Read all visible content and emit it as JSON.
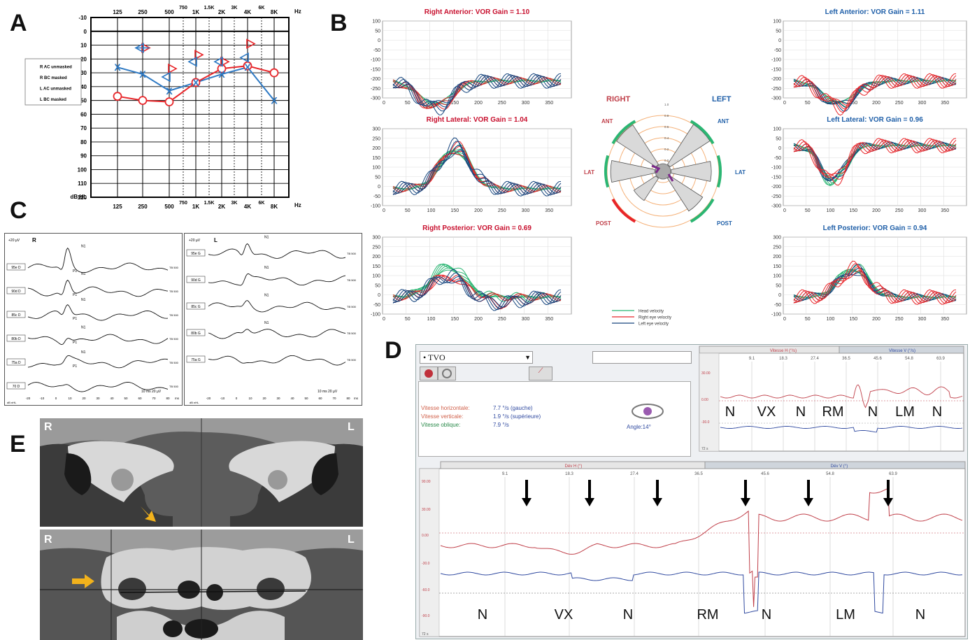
{
  "panels": {
    "a": "A",
    "b": "B",
    "c": "C",
    "d": "D",
    "e": "E"
  },
  "colors": {
    "red": "#e8262a",
    "blue": "#2f7ac4",
    "green": "#2bb673",
    "darkblue": "#16457e",
    "purple": "#7b2a8a",
    "pink": "#c0404a"
  },
  "audiogram": {
    "freq_top": [
      "125",
      "250",
      "500",
      "750",
      "1K",
      "1.5K",
      "2K",
      "3K",
      "4K",
      "6K",
      "8K"
    ],
    "freq_bottom": [
      "125",
      "250",
      "500",
      "750",
      "1K",
      "1.5K",
      "2K",
      "3K",
      "4K",
      "6K",
      "8K"
    ],
    "hz": "Hz",
    "db_labels": [
      "-10",
      "0",
      "10",
      "20",
      "30",
      "40",
      "50",
      "60",
      "70",
      "80",
      "90",
      "100",
      "110",
      "120"
    ],
    "db_hl": "dB HL",
    "legend": [
      "R AC unmasked",
      "R BC masked",
      "L AC unmasked",
      "L BC masked"
    ]
  },
  "chart_data": [
    {
      "type": "line",
      "panel": "A",
      "x": [
        "125",
        "250",
        "500",
        "1K",
        "2K",
        "4K",
        "8K"
      ],
      "series": [
        {
          "name": "R AC unmasked",
          "values": [
            47,
            50,
            51,
            37,
            27,
            25,
            30
          ]
        },
        {
          "name": "L AC unmasked",
          "values": [
            26,
            31,
            43,
            37,
            31,
            26,
            50
          ]
        },
        {
          "name": "R BC masked",
          "x": [
            "250",
            "500",
            "1K",
            "2K",
            "4K"
          ],
          "values": [
            12,
            27,
            17,
            22,
            9
          ]
        },
        {
          "name": "L BC masked",
          "x": [
            "250",
            "500",
            "1K",
            "2K",
            "4K"
          ],
          "values": [
            12,
            33,
            22,
            22,
            19
          ]
        }
      ],
      "ylim": [
        -10,
        120
      ]
    },
    {
      "type": "line",
      "panel": "B",
      "subplots": [
        {
          "title": "Right Anterior: VOR Gain = 1.10",
          "gain": 1.1,
          "ylim": [
            -300,
            100
          ]
        },
        {
          "title": "Right Lateral: VOR Gain = 1.04",
          "gain": 1.04,
          "ylim": [
            -100,
            300
          ]
        },
        {
          "title": "Right Posterior: VOR Gain = 0.69",
          "gain": 0.69,
          "ylim": [
            -100,
            300
          ]
        },
        {
          "title": "Left Anterior: VOR Gain = 1.11",
          "gain": 1.11,
          "ylim": [
            -300,
            100
          ]
        },
        {
          "title": "Left Lateral: VOR Gain = 0.96",
          "gain": 0.96,
          "ylim": [
            -300,
            100
          ]
        },
        {
          "title": "Left Posterior: VOR Gain = 0.94",
          "gain": 0.94,
          "ylim": [
            -100,
            300
          ]
        }
      ],
      "xticks": [
        "0",
        "50",
        "100",
        "150",
        "200",
        "250",
        "300",
        "350"
      ],
      "yticks_neg": [
        "100",
        "50",
        "0",
        "-50",
        "-100",
        "-150",
        "-200",
        "-250",
        "-300"
      ],
      "yticks_pos": [
        "300",
        "250",
        "200",
        "150",
        "100",
        "50",
        "0",
        "-50",
        "-100"
      ],
      "legend": [
        "Head velocity",
        "Right eye velocity",
        "Left eye velocity"
      ]
    }
  ],
  "polar": {
    "right": "RIGHT",
    "left": "LEFT",
    "ant_l": "ANT",
    "ant_r": "ANT",
    "lat_l": "LAT",
    "lat_r": "LAT",
    "post_l": "POST",
    "post_r": "POST",
    "rings": [
      "0.0",
      "0.2",
      "0.4",
      "0.6",
      "0.8",
      "1.0"
    ]
  },
  "ecochg": {
    "right_label": "R",
    "left_label": "L",
    "scale": "+20 µV",
    "right_levels": [
      "95e D",
      "90d D",
      "85c D",
      "80b D",
      "75a D",
      "70 D"
    ],
    "left_levels": [
      "95e G",
      "90d G",
      "85c G",
      "80b G",
      "75a G"
    ],
    "tb": "TB 500",
    "xticks": [
      "-20",
      "-10",
      "0",
      "10",
      "20",
      "30",
      "40",
      "50",
      "60",
      "70",
      "80"
    ],
    "x_unit": "ms",
    "x_unit_left": "dB nHL",
    "scale_bar": "10 ms    20 µV",
    "n1": "N1",
    "p1": "P1"
  },
  "tvo": {
    "select": "TVO",
    "rows": [
      {
        "label": "Vitesse horizontale:",
        "value": "7.7 °/s (gauche)"
      },
      {
        "label": "Vitesse verticale:",
        "value": "1.9 °/s (supérieure)"
      },
      {
        "label": "Vitesse oblique:",
        "value": "7.9 °/s"
      }
    ],
    "angle": "Angle:14°",
    "vh_header": "Vitesse H (°/s)",
    "vv_header": "Vitesse V (°/s)",
    "dh_header": "Dév H (°)",
    "dv_header": "Dév V (°)",
    "time_ticks": [
      "9.1",
      "18.3",
      "27.4",
      "36.5",
      "45.6",
      "54.8",
      "63.9"
    ],
    "top_phases": [
      "N",
      "VX",
      "N",
      "RM",
      "N",
      "LM",
      "N"
    ],
    "bottom_phases": [
      "N",
      "VX",
      "N",
      "RM",
      "N",
      "LM",
      "N"
    ],
    "y_ticks_top": [
      "30.00",
      "0.00",
      "-30.0"
    ],
    "y_ticks_bottom": [
      "90.00",
      "30.00",
      "0.00",
      "-30.0",
      "-60.0",
      "-90.0"
    ],
    "t_label": "72 s"
  },
  "ct": {
    "r_top": "R",
    "l_top": "L",
    "r_bottom": "R",
    "l_bottom": "L"
  }
}
